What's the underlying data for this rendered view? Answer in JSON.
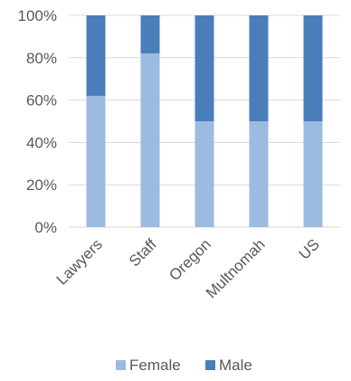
{
  "chart_data": {
    "type": "bar",
    "stacked": true,
    "percent": true,
    "categories": [
      "Lawyers",
      "Staff",
      "Oregon",
      "Multnomah",
      "US"
    ],
    "series": [
      {
        "name": "Female",
        "color": "#9BBBE0",
        "values": [
          62,
          82,
          50,
          50,
          50
        ]
      },
      {
        "name": "Male",
        "color": "#4A7EBB",
        "values": [
          38,
          18,
          50,
          50,
          50
        ]
      }
    ],
    "y_ticks": [
      "0%",
      "20%",
      "40%",
      "60%",
      "80%",
      "100%"
    ],
    "ylim": [
      0,
      100
    ],
    "grid": true,
    "legend_position": "bottom",
    "colors": {
      "grid": "#D9D9D9",
      "text": "#595959"
    }
  }
}
